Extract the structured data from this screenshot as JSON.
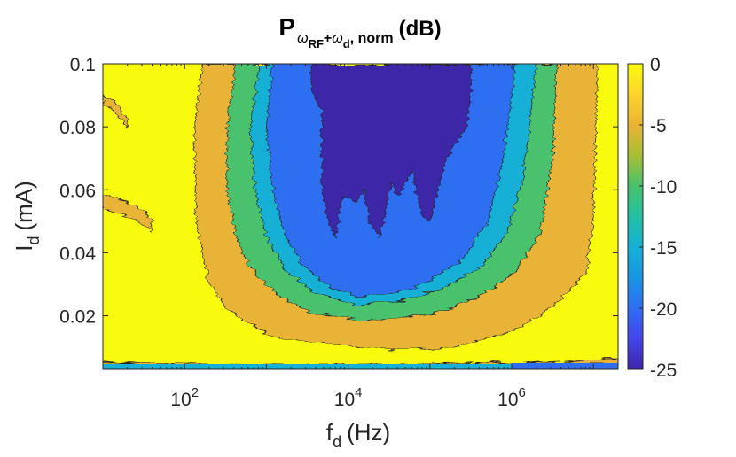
{
  "chart_data": {
    "type": "heatmap",
    "subtype": "filled-contour",
    "title": {
      "main": "P",
      "sub_w1": "ω",
      "sub_rf": "RF",
      "sub_plus": "+",
      "sub_w2": "ω",
      "sub_d": "d",
      "sub_rest": ", norm",
      "unit": "(dB)"
    },
    "xlabel": {
      "main": "f",
      "sub": "d",
      "unit": "(Hz)"
    },
    "ylabel": {
      "main": "I",
      "sub": "d",
      "unit": "(mA)"
    },
    "x_scale": "log",
    "xlim": [
      10,
      20000000
    ],
    "ylim": [
      0.003,
      0.1
    ],
    "x_ticks": [
      {
        "value": 100,
        "base": "10",
        "exp": "2"
      },
      {
        "value": 10000,
        "base": "10",
        "exp": "4"
      },
      {
        "value": 1000000,
        "base": "10",
        "exp": "6"
      }
    ],
    "y_ticks": [
      {
        "value": 0.02,
        "label": "0.02"
      },
      {
        "value": 0.04,
        "label": "0.04"
      },
      {
        "value": 0.06,
        "label": "0.06"
      },
      {
        "value": 0.08,
        "label": "0.08"
      },
      {
        "value": 0.1,
        "label": "0.1"
      }
    ],
    "colorbar": {
      "limits": [
        -25,
        0
      ],
      "ticks": [
        {
          "value": 0,
          "label": "0"
        },
        {
          "value": -5,
          "label": "-5"
        },
        {
          "value": -10,
          "label": "-10"
        },
        {
          "value": -15,
          "label": "-15"
        },
        {
          "value": -20,
          "label": "-20"
        },
        {
          "value": -25,
          "label": "-25"
        }
      ],
      "levels": [
        {
          "range": [
            -25,
            -22.5
          ],
          "color": "#3e26a8"
        },
        {
          "range": [
            -22.5,
            -17.5
          ],
          "color": "#2f6ef1"
        },
        {
          "range": [
            -17.5,
            -12.5
          ],
          "color": "#17b0d6"
        },
        {
          "range": [
            -12.5,
            -7.5
          ],
          "color": "#49c16d"
        },
        {
          "range": [
            -7.5,
            -2.5
          ],
          "color": "#e9b337"
        },
        {
          "range": [
            -2.5,
            0
          ],
          "color": "#f9fb0e"
        }
      ],
      "gradient": [
        "#3e26a8",
        "#4545e8",
        "#2f6ef1",
        "#1b95e0",
        "#17b0d6",
        "#26bfa2",
        "#49c16d",
        "#a8be36",
        "#e9b337",
        "#fbd52b",
        "#f9fb0e"
      ]
    },
    "grid": false,
    "legend": "colorbar right",
    "description": "Normalized sideband power vs drive frequency and drive current: near 0 dB at low and high frequency, deep notch (about -25 dB) between ~10^4 and ~10^6 Hz for currents above ~0.03 mA"
  }
}
